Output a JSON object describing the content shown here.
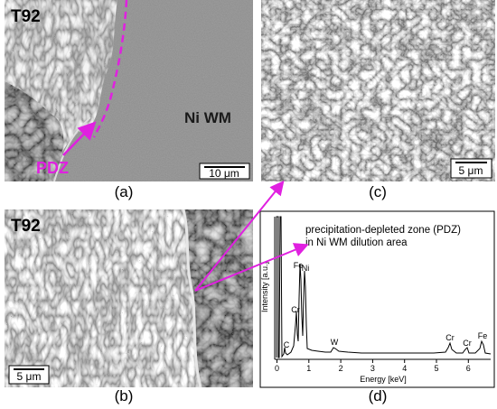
{
  "panels": {
    "a": {
      "label": "(a)",
      "material": "T92",
      "weld": "Ni WM",
      "zone": "PDZ",
      "scale_bar": "10 μm"
    },
    "b": {
      "label": "(b)",
      "material": "T92",
      "scale_bar": "5 μm"
    },
    "c": {
      "label": "(c)",
      "scale_bar": "5 μm"
    },
    "d": {
      "label": "(d)"
    }
  },
  "spectrum": {
    "note_lines": [
      "precipitation-depleted zone (PDZ)",
      "in Ni WM dilution area"
    ],
    "y_label": "Intensity [a.u.]",
    "x_label": "Energy [keV]",
    "x_ticks": [
      0,
      1,
      2,
      3,
      4,
      5,
      6
    ],
    "peak_labels": [
      "C",
      "Cr",
      "Fe",
      "Ni",
      "W",
      "Cr",
      "Cr",
      "Fe"
    ]
  }
}
